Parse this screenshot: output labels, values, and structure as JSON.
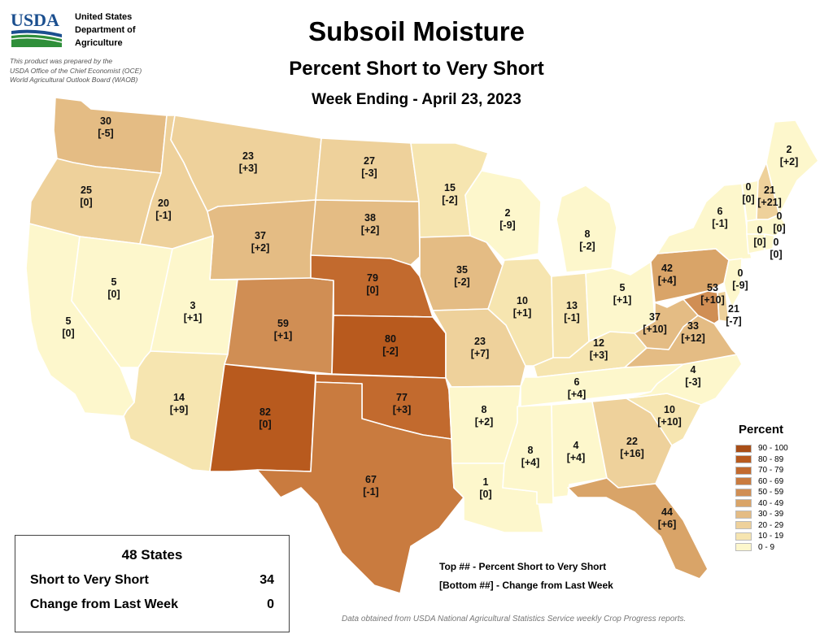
{
  "header": {
    "agency_lines": [
      "United States",
      "Department of",
      "Agriculture"
    ],
    "prepared_lines": [
      "This product was prepared by the",
      "USDA Office of the Chief Economist (OCE)",
      "World Agricultural Outlook Board (WAOB)"
    ],
    "logo_text": "USDA",
    "title": "Subsoil Moisture",
    "subtitle": "Percent Short to Very Short",
    "week": "Week Ending - April 23, 2023"
  },
  "legend": {
    "title": "Percent",
    "items": [
      {
        "label": "90 - 100",
        "color": "#a84e17"
      },
      {
        "label": "80 - 89",
        "color": "#b85a1e"
      },
      {
        "label": "70 - 79",
        "color": "#c26a2e"
      },
      {
        "label": "60 - 69",
        "color": "#c97b3f"
      },
      {
        "label": "50 - 59",
        "color": "#d08e54"
      },
      {
        "label": "40 - 49",
        "color": "#d9a468"
      },
      {
        "label": "30 - 39",
        "color": "#e4bc84"
      },
      {
        "label": "20 - 29",
        "color": "#eed19b"
      },
      {
        "label": "10 - 19",
        "color": "#f6e5b0"
      },
      {
        "label": "0 - 9",
        "color": "#fdf7cc"
      }
    ]
  },
  "notes": {
    "top": "Top ## - Percent Short to Very Short",
    "bottom": "[Bottom ##] - Change from Last Week"
  },
  "summary": {
    "title": "48 States",
    "short_label": "Short to Very Short",
    "short_value": "34",
    "change_label": "Change from Last Week",
    "change_value": "0"
  },
  "source": "Data obtained from USDA National Agricultural Statistics Service weekly Crop Progress reports.",
  "states": {
    "WA": {
      "value": "30",
      "change": "[-5]"
    },
    "OR": {
      "value": "25",
      "change": "[0]"
    },
    "CA": {
      "value": "5",
      "change": "[0]"
    },
    "NV": {
      "value": "5",
      "change": "[0]"
    },
    "ID": {
      "value": "20",
      "change": "[-1]"
    },
    "MT": {
      "value": "23",
      "change": "[+3]"
    },
    "WY": {
      "value": "37",
      "change": "[+2]"
    },
    "UT": {
      "value": "3",
      "change": "[+1]"
    },
    "AZ": {
      "value": "14",
      "change": "[+9]"
    },
    "CO": {
      "value": "59",
      "change": "[+1]"
    },
    "NM": {
      "value": "82",
      "change": "[0]"
    },
    "ND": {
      "value": "27",
      "change": "[-3]"
    },
    "SD": {
      "value": "38",
      "change": "[+2]"
    },
    "NE": {
      "value": "79",
      "change": "[0]"
    },
    "KS": {
      "value": "80",
      "change": "[-2]"
    },
    "OK": {
      "value": "77",
      "change": "[+3]"
    },
    "TX": {
      "value": "67",
      "change": "[-1]"
    },
    "MN": {
      "value": "15",
      "change": "[-2]"
    },
    "IA": {
      "value": "35",
      "change": "[-2]"
    },
    "MO": {
      "value": "23",
      "change": "[+7]"
    },
    "AR": {
      "value": "8",
      "change": "[+2]"
    },
    "LA": {
      "value": "1",
      "change": "[0]"
    },
    "WI": {
      "value": "2",
      "change": "[-9]"
    },
    "IL": {
      "value": "10",
      "change": "[+1]"
    },
    "MI": {
      "value": "8",
      "change": "[-2]"
    },
    "IN": {
      "value": "13",
      "change": "[-1]"
    },
    "OH": {
      "value": "5",
      "change": "[+1]"
    },
    "KY": {
      "value": "12",
      "change": "[+3]"
    },
    "TN": {
      "value": "6",
      "change": "[+4]"
    },
    "MS": {
      "value": "8",
      "change": "[+4]"
    },
    "AL": {
      "value": "4",
      "change": "[+4]"
    },
    "GA": {
      "value": "22",
      "change": "[+16]"
    },
    "FL": {
      "value": "44",
      "change": "[+6]"
    },
    "SC": {
      "value": "10",
      "change": "[+10]"
    },
    "NC": {
      "value": "4",
      "change": "[-3]"
    },
    "VA": {
      "value": "33",
      "change": "[+12]"
    },
    "WV": {
      "value": "37",
      "change": "[+10]"
    },
    "PA": {
      "value": "42",
      "change": "[+4]"
    },
    "NY": {
      "value": "6",
      "change": "[-1]"
    },
    "MD": {
      "value": "53",
      "change": "[+10]"
    },
    "DE": {
      "value": "21",
      "change": "[-7]"
    },
    "NJ": {
      "value": "0",
      "change": "[-9]"
    },
    "VT": {
      "value": "0",
      "change": "[0]"
    },
    "NH": {
      "value": "21",
      "change": "[+21]"
    },
    "ME": {
      "value": "2",
      "change": "[+2]"
    },
    "MA": {
      "value": "0",
      "change": "[0]"
    },
    "CT": {
      "value": "0",
      "change": "[0]"
    },
    "RI": {
      "value": "0",
      "change": "[0]"
    }
  }
}
